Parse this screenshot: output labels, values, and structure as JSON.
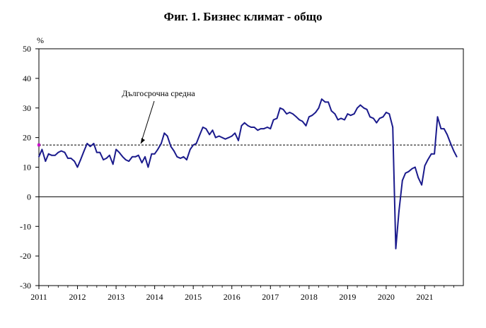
{
  "chart_data": {
    "type": "line",
    "title": "Фиг. 1. Бизнес климат - общо",
    "ylabel": "%",
    "xlabel": "",
    "ylim": [
      -30,
      50
    ],
    "yticks": [
      50,
      40,
      30,
      20,
      10,
      0,
      -10,
      -20,
      -30
    ],
    "xlim": [
      2011,
      2022
    ],
    "xticks": [
      "2011",
      "2012",
      "2013",
      "2014",
      "2015",
      "2016",
      "2017",
      "2018",
      "2019",
      "2020",
      "2021"
    ],
    "grid": false,
    "reference_line": {
      "label": "Дългосрочна средна",
      "value": 17.5,
      "style": "dashed"
    },
    "series": [
      {
        "color": "#1a1a8c",
        "x": [
          2011.0,
          2011.08,
          2011.17,
          2011.25,
          2011.33,
          2011.42,
          2011.5,
          2011.58,
          2011.67,
          2011.75,
          2011.83,
          2011.92,
          2012.0,
          2012.08,
          2012.17,
          2012.25,
          2012.33,
          2012.42,
          2012.5,
          2012.58,
          2012.67,
          2012.75,
          2012.83,
          2012.92,
          2013.0,
          2013.08,
          2013.17,
          2013.25,
          2013.33,
          2013.42,
          2013.5,
          2013.58,
          2013.67,
          2013.75,
          2013.83,
          2013.92,
          2014.0,
          2014.08,
          2014.17,
          2014.25,
          2014.33,
          2014.42,
          2014.5,
          2014.58,
          2014.67,
          2014.75,
          2014.83,
          2014.92,
          2015.0,
          2015.08,
          2015.17,
          2015.25,
          2015.33,
          2015.42,
          2015.5,
          2015.58,
          2015.67,
          2015.75,
          2015.83,
          2015.92,
          2016.0,
          2016.08,
          2016.17,
          2016.25,
          2016.33,
          2016.42,
          2016.5,
          2016.58,
          2016.67,
          2016.75,
          2016.83,
          2016.92,
          2017.0,
          2017.08,
          2017.17,
          2017.25,
          2017.33,
          2017.42,
          2017.5,
          2017.58,
          2017.67,
          2017.75,
          2017.83,
          2017.92,
          2018.0,
          2018.08,
          2018.17,
          2018.25,
          2018.33,
          2018.42,
          2018.5,
          2018.58,
          2018.67,
          2018.75,
          2018.83,
          2018.92,
          2019.0,
          2019.08,
          2019.17,
          2019.25,
          2019.33,
          2019.42,
          2019.5,
          2019.58,
          2019.67,
          2019.75,
          2019.83,
          2019.92,
          2020.0,
          2020.08,
          2020.17,
          2020.25,
          2020.33,
          2020.42,
          2020.5,
          2020.58,
          2020.67,
          2020.75,
          2020.83,
          2020.92,
          2021.0,
          2021.08,
          2021.17,
          2021.25,
          2021.33,
          2021.42,
          2021.5,
          2021.58,
          2021.67,
          2021.75,
          2021.83
        ],
        "values": [
          13.5,
          16.0,
          12.0,
          14.5,
          14.0,
          14.0,
          15.0,
          15.5,
          15.0,
          13.0,
          13.0,
          12.0,
          10.0,
          12.5,
          15.5,
          18.0,
          17.0,
          18.0,
          15.0,
          15.0,
          12.5,
          13.0,
          14.0,
          11.0,
          16.0,
          15.0,
          13.5,
          12.5,
          12.0,
          13.5,
          13.5,
          14.0,
          11.5,
          13.5,
          10.0,
          14.5,
          14.5,
          16.0,
          18.0,
          21.5,
          20.5,
          17.0,
          15.5,
          13.5,
          13.0,
          13.5,
          12.5,
          16.0,
          17.5,
          18.0,
          21.0,
          23.5,
          23.0,
          21.0,
          22.5,
          20.0,
          20.5,
          20.0,
          19.5,
          20.0,
          20.5,
          21.5,
          19.0,
          24.0,
          25.0,
          24.0,
          23.5,
          23.5,
          22.5,
          23.0,
          23.0,
          23.5,
          23.0,
          26.0,
          26.5,
          30.0,
          29.5,
          28.0,
          28.5,
          28.0,
          27.0,
          26.0,
          25.5,
          24.0,
          27.0,
          27.5,
          28.5,
          30.0,
          33.0,
          32.0,
          32.0,
          29.0,
          28.0,
          26.0,
          26.5,
          26.0,
          28.0,
          27.5,
          28.0,
          30.0,
          31.0,
          30.0,
          29.5,
          27.0,
          26.5,
          25.0,
          26.5,
          27.0,
          28.5,
          28.0,
          23.5,
          -17.5,
          -5.0,
          5.5,
          8.0,
          8.5,
          9.5,
          10.0,
          6.5,
          4.0,
          10.5,
          12.5,
          14.5,
          14.5,
          27.0,
          23.0,
          23.0,
          21.0,
          18.0,
          15.5,
          13.5
        ]
      }
    ]
  }
}
